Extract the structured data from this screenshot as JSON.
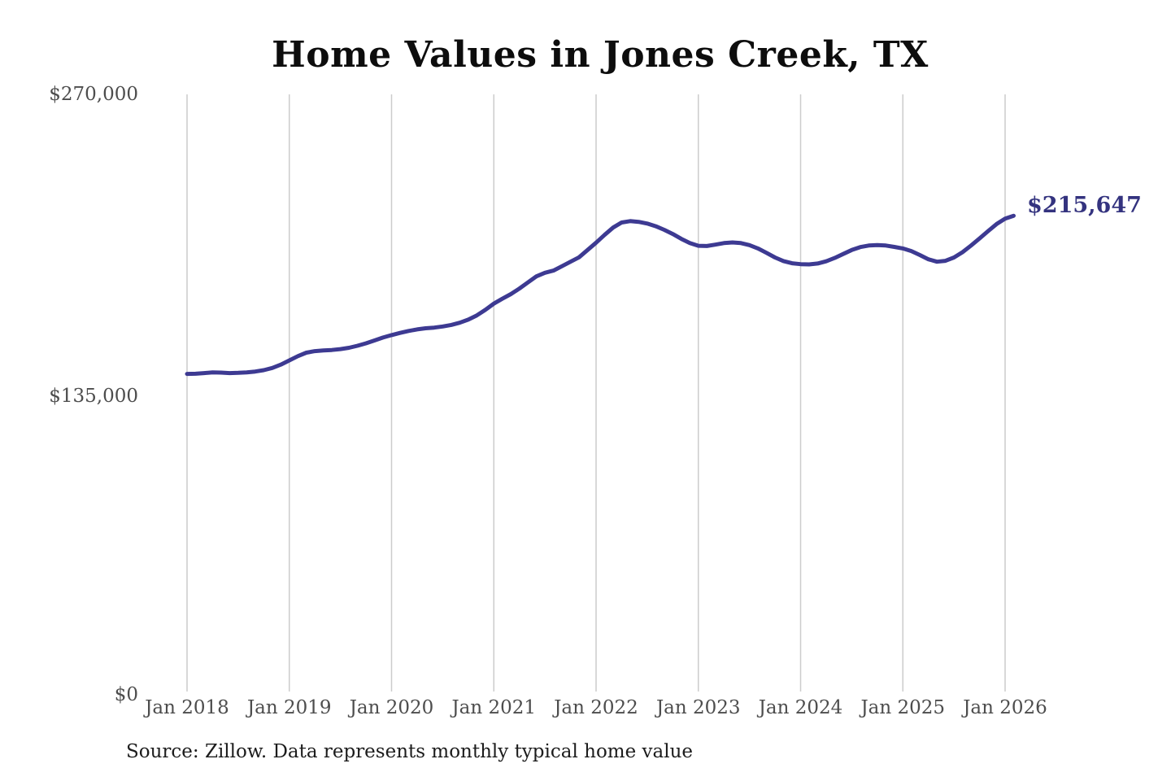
{
  "title": "Home Values in Jones Creek, TX",
  "end_value_label": "$215,647",
  "source_note": "Source: Zillow. Data represents monthly typical home value",
  "y_axis_labels": [
    "$270,000",
    "$135,000",
    "$0"
  ],
  "x_axis_labels": [
    "Jan 2018",
    "Jan 2019",
    "Jan 2020",
    "Jan 2021",
    "Jan 2022",
    "Jan 2023",
    "Jan 2024",
    "Jan 2025",
    "Jan 2026"
  ],
  "colors": {
    "line": "#3d3a92",
    "end_label": "#34337f",
    "grid": "#cccccc",
    "axis_text": "#4d4d4d",
    "title_text": "#0d0d0d",
    "source_text": "#1c1c1c",
    "background": "#ffffff"
  },
  "chart_data": {
    "type": "line",
    "title": "Home Values in Jones Creek, TX",
    "xlabel": "",
    "ylabel": "",
    "x_start": "2018-01",
    "x_frequency": "monthly",
    "x_end": "2026-02",
    "x_tick_labels": [
      "Jan 2018",
      "Jan 2019",
      "Jan 2020",
      "Jan 2021",
      "Jan 2022",
      "Jan 2023",
      "Jan 2024",
      "Jan 2025",
      "Jan 2026"
    ],
    "y_tick_labels": [
      "$0",
      "$135,000",
      "$270,000"
    ],
    "ylim": [
      0,
      270000
    ],
    "grid": "vertical-only",
    "legend": "none",
    "end_label": {
      "text": "$215,647",
      "value": 215647
    },
    "series": [
      {
        "name": "Monthly typical home value",
        "values": [
          144300,
          144400,
          144700,
          145000,
          144900,
          144700,
          144800,
          145000,
          145400,
          146000,
          147000,
          148500,
          150400,
          152300,
          153900,
          154600,
          154900,
          155100,
          155500,
          156100,
          157000,
          158100,
          159400,
          160700,
          161800,
          162800,
          163700,
          164400,
          164900,
          165200,
          165700,
          166400,
          167400,
          168800,
          170700,
          173200,
          176000,
          178200,
          180300,
          182800,
          185600,
          188300,
          189900,
          190900,
          192900,
          194900,
          196900,
          200200,
          203500,
          207000,
          210300,
          212600,
          213200,
          212900,
          212100,
          210900,
          209300,
          207400,
          205200,
          203300,
          202100,
          202000,
          202600,
          203300,
          203600,
          203300,
          202400,
          200900,
          198900,
          196800,
          195200,
          194200,
          193800,
          193700,
          194100,
          195100,
          196600,
          198400,
          200200,
          201500,
          202200,
          202400,
          202200,
          201600,
          200900,
          199700,
          197900,
          196000,
          194900,
          195300,
          196800,
          199200,
          202200,
          205400,
          208700,
          211900,
          214300,
          215647
        ]
      }
    ]
  }
}
